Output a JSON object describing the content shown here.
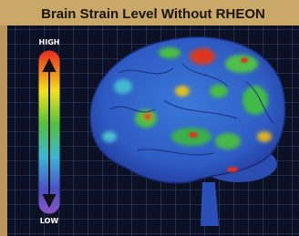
{
  "title": "Brain Strain Level Without RHEON",
  "scale": {
    "high": "HIGH",
    "low": "LOW"
  }
}
